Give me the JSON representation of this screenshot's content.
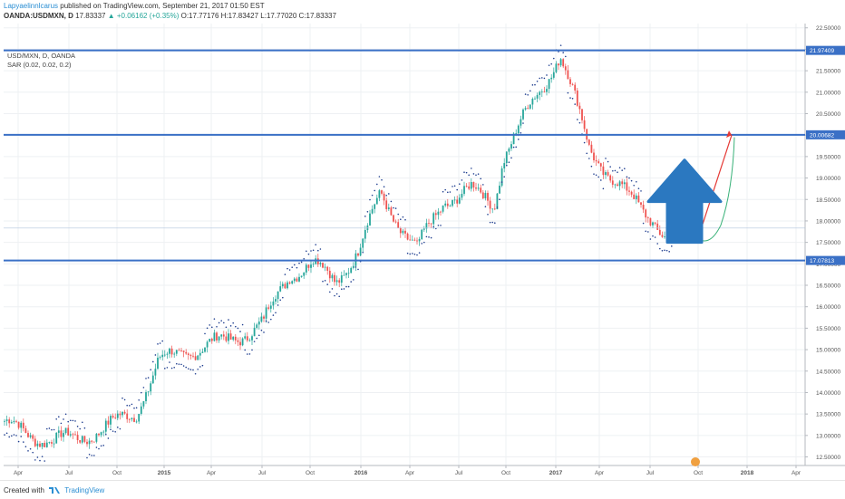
{
  "header": {
    "author": "Lapyaelinnlcarus",
    "published": " published on TradingView.com, September 21, 2017 01:50 EST",
    "symbol": "OANDA:USDMXN, D",
    "last": "17.83337",
    "change": "▲ +0.06162 (+0.35%)",
    "open": "O:17.77176",
    "high": "H:17.83427",
    "low": "L:17.77020",
    "close": "C:17.83337"
  },
  "legend": {
    "instrument": "USD/MXN, D, OANDA",
    "indicator": "SAR (0.02, 0.02, 0.2)"
  },
  "footer": {
    "created_with": "Created with",
    "brand": "TradingView"
  },
  "colors": {
    "hline": "#3a70c6",
    "bull": "#26a69a",
    "bear": "#ef5350",
    "sar": "#1f3e8f",
    "arrow": "#2b78c0",
    "red_line": "#e53935",
    "green_curve": "#3bb27a"
  },
  "chart_data": {
    "type": "line",
    "title": "USD/MXN, D, OANDA",
    "ylim": [
      12.3,
      22.6
    ],
    "y_ticks": [
      "12.50000",
      "13.00000",
      "13.50000",
      "14.00000",
      "14.50000",
      "15.00000",
      "15.50000",
      "16.00000",
      "16.50000",
      "17.00000",
      "17.50000",
      "18.00000",
      "18.50000",
      "19.00000",
      "19.50000",
      "20.00000",
      "20.50000",
      "21.00000",
      "21.50000",
      "22.00000",
      "22.50000"
    ],
    "x_ticks": [
      "Apr",
      "Jul",
      "Oct",
      "2015",
      "Apr",
      "Jul",
      "Oct",
      "2016",
      "Apr",
      "Jul",
      "Oct",
      "2017",
      "Apr",
      "Jul",
      "Oct",
      "2018",
      "Apr"
    ],
    "horizontal_levels": [
      {
        "label": "21.97409",
        "value": 21.97409
      },
      {
        "label": "20.00682",
        "value": 20.00682
      },
      {
        "label": "17.07813",
        "value": 17.07813
      }
    ],
    "series": [
      {
        "x": [
          "2014-01",
          "2014-03",
          "2014-05",
          "2014-07",
          "2014-09",
          "2014-11",
          "2014-12",
          "2015-02",
          "2015-04",
          "2015-06",
          "2015-08",
          "2015-09",
          "2015-11",
          "2016-01",
          "2016-02",
          "2016-04",
          "2016-06",
          "2016-08",
          "2016-10",
          "2016-11",
          "2017-01",
          "2017-02",
          "2017-04",
          "2017-06",
          "2017-07",
          "2017-09"
        ],
        "values": [
          13.25,
          13.0,
          12.85,
          12.95,
          13.2,
          13.55,
          14.7,
          15.0,
          15.2,
          15.6,
          16.8,
          17.0,
          16.6,
          17.3,
          18.6,
          17.3,
          18.5,
          18.7,
          18.4,
          19.5,
          21.9,
          19.7,
          18.6,
          18.1,
          17.6,
          17.83
        ]
      }
    ],
    "projection": {
      "red_line": {
        "from": 17.6,
        "to": 20.0
      },
      "green_curve_min": 17.55
    }
  }
}
